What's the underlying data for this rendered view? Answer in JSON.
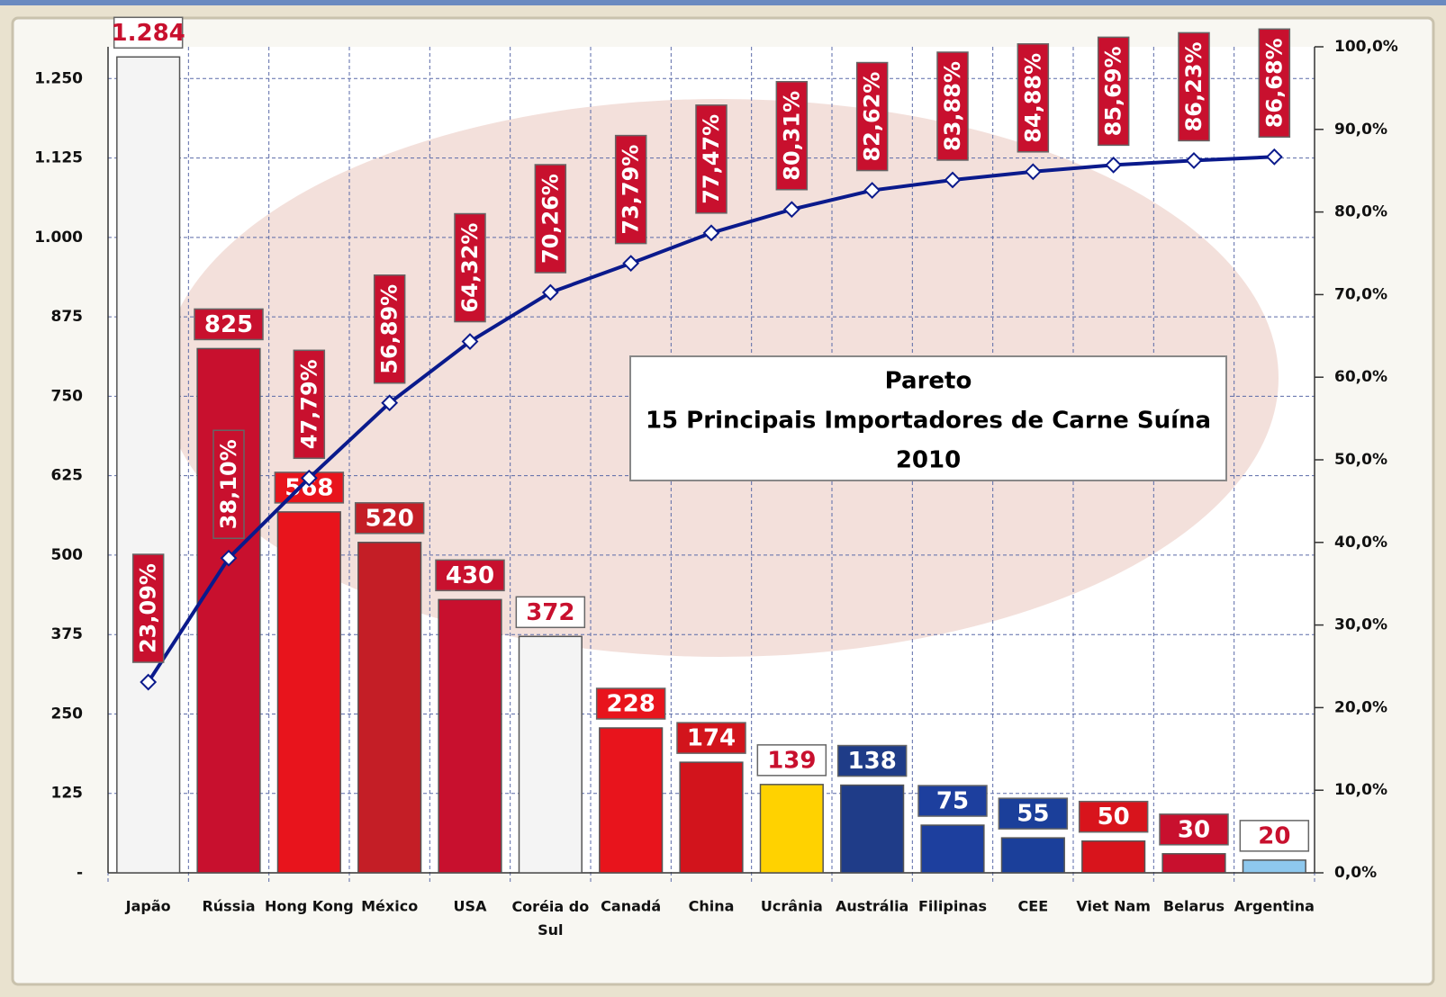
{
  "chart_data": {
    "type": "bar",
    "title": "Pareto",
    "subtitle": "15 Principais Importadores de Carne Suína",
    "caption": "2010",
    "categories": [
      "Japão",
      "Rússia",
      "Hong Kong",
      "México",
      "USA",
      "Coréia do Sul",
      "Canadá",
      "China",
      "Ucrânia",
      "Austrália",
      "Filipinas",
      "CEE",
      "Viet Nam",
      "Belarus",
      "Argentina"
    ],
    "values": [
      1284,
      825,
      568,
      520,
      430,
      372,
      228,
      174,
      139,
      138,
      75,
      55,
      50,
      30,
      20
    ],
    "value_labels": [
      "1.284",
      "825",
      "568",
      "520",
      "430",
      "372",
      "228",
      "174",
      "139",
      "138",
      "75",
      "55",
      "50",
      "30",
      "20"
    ],
    "colors": [
      "#f4f4f4",
      "#c8102e",
      "#e8141c",
      "#c41e26",
      "#c8102e",
      "#f4f4f4",
      "#e8141c",
      "#d2141c",
      "#ffd200",
      "#1f3c88",
      "#1d3f9e",
      "#1b3f9a",
      "#d8141c",
      "#c8102e",
      "#8ec8ee"
    ],
    "ylim": [
      0,
      1300
    ],
    "yticks": [
      {
        "value": 0,
        "label": "-"
      },
      125,
      250,
      375,
      500,
      625,
      750,
      875,
      {
        "value": 1000,
        "label": "1.000"
      },
      {
        "value": 1125,
        "label": "1.125"
      },
      {
        "value": 1250,
        "label": "1.250"
      }
    ],
    "line": {
      "type": "line",
      "axis": "y2",
      "color": "#0a1a8c",
      "values": [
        23.09,
        38.1,
        47.79,
        56.89,
        64.32,
        70.26,
        73.79,
        77.47,
        80.31,
        82.62,
        83.88,
        84.88,
        85.69,
        86.23,
        86.68
      ],
      "value_labels": [
        "23,09%",
        "38,10%",
        "47,79%",
        "56,89%",
        "64,32%",
        "70,26%",
        "73,79%",
        "77,47%",
        "80,31%",
        "82,62%",
        "83,88%",
        "84,88%",
        "85,69%",
        "86,23%",
        "86,68%"
      ]
    },
    "y2lim": [
      0,
      100
    ],
    "y2ticks": [
      {
        "value": 0,
        "label": "0,0%"
      },
      {
        "value": 10,
        "label": "10,0%"
      },
      {
        "value": 20,
        "label": "20,0%"
      },
      {
        "value": 30,
        "label": "30,0%"
      },
      {
        "value": 40,
        "label": "40,0%"
      },
      {
        "value": 50,
        "label": "50,0%"
      },
      {
        "value": 60,
        "label": "60,0%"
      },
      {
        "value": 70,
        "label": "70,0%"
      },
      {
        "value": 80,
        "label": "80,0%"
      },
      {
        "value": 90,
        "label": "90,0%"
      },
      {
        "value": 100,
        "label": "100,0%"
      }
    ],
    "grid": true
  }
}
